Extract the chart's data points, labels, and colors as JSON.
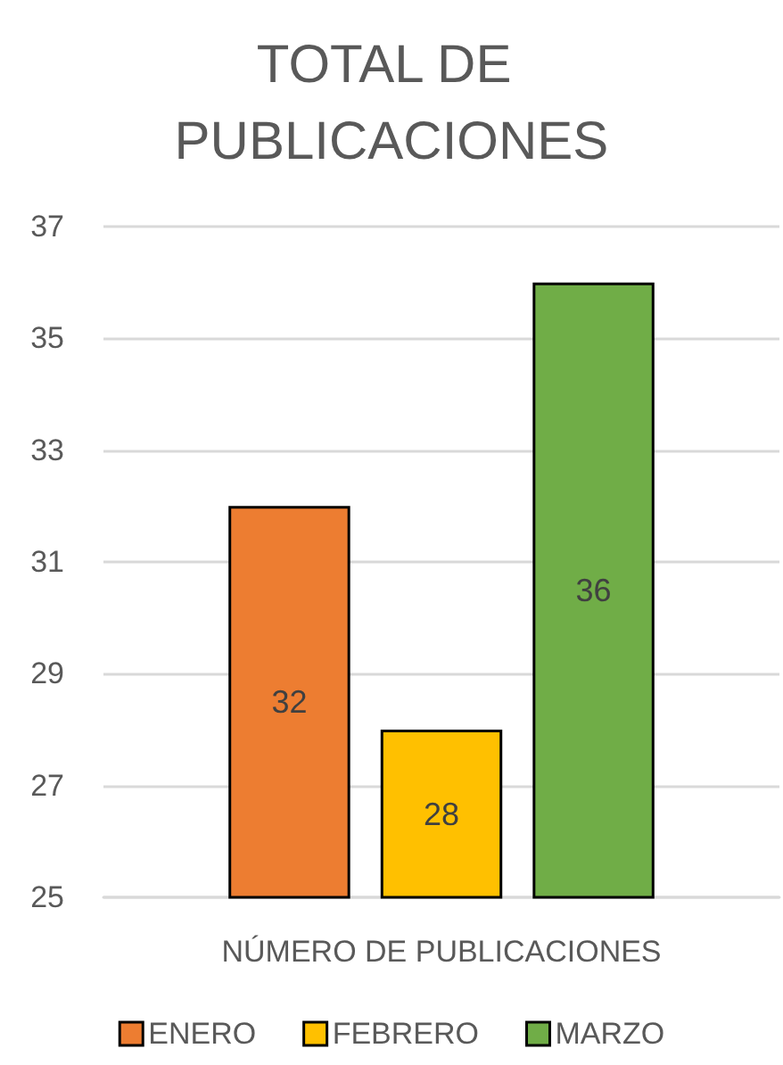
{
  "chart_data": {
    "type": "bar",
    "title": "TOTAL DE PUBLICACIONES",
    "categories": [
      "NÚMERO DE PUBLICACIONES"
    ],
    "series": [
      {
        "name": "ENERO",
        "color": "#ed7d31",
        "values": [
          32
        ]
      },
      {
        "name": "FEBRERO",
        "color": "#ffc000",
        "values": [
          28
        ]
      },
      {
        "name": "MARZO",
        "color": "#70ad47",
        "values": [
          36
        ]
      }
    ],
    "ylim": [
      25,
      37
    ],
    "yticks": [
      25,
      27,
      29,
      31,
      33,
      35,
      37
    ],
    "grid": "y",
    "legend": "bottom",
    "data_labels": true
  }
}
